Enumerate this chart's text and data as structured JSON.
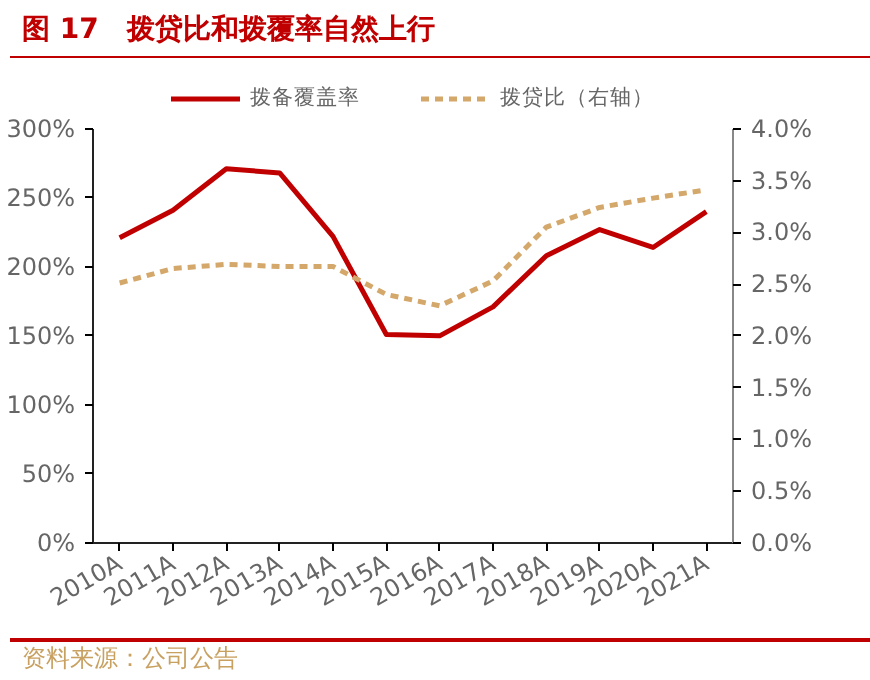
{
  "chart_data": {
    "type": "line",
    "title": "图 17　拨贷比和拨覆率自然上行",
    "categories": [
      "2010A",
      "2011A",
      "2012A",
      "2013A",
      "2014A",
      "2015A",
      "2016A",
      "2017A",
      "2018A",
      "2019A",
      "2020A",
      "2021A"
    ],
    "series": [
      {
        "name": "拨备覆盖率",
        "color": "#c00000",
        "line_style": "solid",
        "values": [
          221,
          241,
          271,
          268,
          222,
          151,
          150,
          171,
          208,
          227,
          214,
          240
        ]
      },
      {
        "name": "拨贷比（右轴）",
        "color": "#d4a76a",
        "line_style": "dashed",
        "axis": "y2",
        "values": [
          2.51,
          2.65,
          2.69,
          2.67,
          2.67,
          2.4,
          2.29,
          2.53,
          3.05,
          3.24,
          3.33,
          3.41
        ]
      }
    ],
    "ylim": [
      0,
      300
    ],
    "yticks": [
      {
        "value": 0,
        "label": "0%"
      },
      {
        "value": 50,
        "label": "50%"
      },
      {
        "value": 100,
        "label": "100%"
      },
      {
        "value": 150,
        "label": "150%"
      },
      {
        "value": 200,
        "label": "200%"
      },
      {
        "value": 250,
        "label": "250%"
      },
      {
        "value": 300,
        "label": "300%"
      }
    ],
    "y2lim": [
      0,
      4
    ],
    "y2ticks": [
      {
        "value": 0,
        "label": "0.0%"
      },
      {
        "value": 0.5,
        "label": "0.5%"
      },
      {
        "value": 1,
        "label": "1.0%"
      },
      {
        "value": 1.5,
        "label": "1.5%"
      },
      {
        "value": 2,
        "label": "2.0%"
      },
      {
        "value": 2.5,
        "label": "2.5%"
      },
      {
        "value": 3,
        "label": "3.0%"
      },
      {
        "value": 3.5,
        "label": "3.5%"
      },
      {
        "value": 4,
        "label": "4.0%"
      }
    ],
    "legend": "top",
    "grid": false,
    "annotations": [
      "资料来源：公司公告"
    ]
  }
}
